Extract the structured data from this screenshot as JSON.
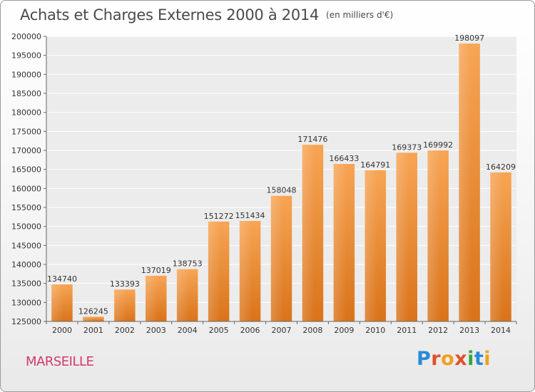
{
  "title": "Achats et Charges Externes 2000 à 2014",
  "unit_note": "(en milliers d'€)",
  "city": "MARSEILLE",
  "logo": {
    "text": "Proxiti",
    "parts": [
      "P",
      "r",
      "o",
      "x",
      "i",
      "t",
      "i"
    ]
  },
  "colors": {
    "bar_top": "#f7a555",
    "bar_bottom": "#d9731a",
    "city": "#d23a6a"
  },
  "chart_data": {
    "type": "bar",
    "categories": [
      "2000",
      "2001",
      "2002",
      "2003",
      "2004",
      "2005",
      "2006",
      "2007",
      "2008",
      "2009",
      "2010",
      "2011",
      "2012",
      "2013",
      "2014"
    ],
    "values": [
      134740,
      126245,
      133393,
      137019,
      138753,
      151272,
      151434,
      158048,
      171476,
      166433,
      164791,
      169373,
      169992,
      198097,
      164209
    ],
    "title": "Achats et Charges Externes 2000 à 2014",
    "xlabel": "",
    "ylabel": "",
    "ylim": [
      125000,
      200000
    ],
    "yticks": [
      125000,
      130000,
      135000,
      140000,
      145000,
      150000,
      155000,
      160000,
      165000,
      170000,
      175000,
      180000,
      185000,
      190000,
      195000,
      200000
    ],
    "grid": true,
    "legend": "none"
  }
}
